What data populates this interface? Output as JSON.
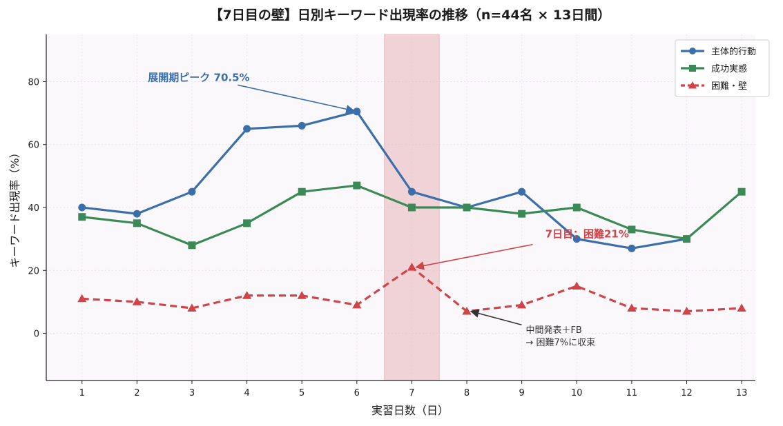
{
  "chart_data": {
    "type": "line",
    "title": "【7日目の壁】日別キーワード出現率の推移（n=44名 × 13日間）",
    "xlabel": "実習日数（日）",
    "ylabel": "キーワード出現率（%）",
    "x": [
      1,
      2,
      3,
      4,
      5,
      6,
      7,
      8,
      9,
      10,
      11,
      12,
      13
    ],
    "xlim": [
      0.35,
      13.25
    ],
    "ylim": [
      -15,
      95
    ],
    "yticks": [
      0,
      20,
      40,
      60,
      80
    ],
    "grid": true,
    "legend_position": "top-right",
    "highlight_band": {
      "x_from": 6.5,
      "x_to": 7.5,
      "color": "#e8b4b8"
    },
    "series": [
      {
        "name": "主体的行動",
        "marker": "circle",
        "color": "#3a6faa",
        "dash": false,
        "values": [
          40,
          38,
          45,
          65,
          66,
          70.5,
          45,
          40,
          45,
          30,
          27,
          30,
          null
        ]
      },
      {
        "name": "成功実感",
        "marker": "square",
        "color": "#3a8a55",
        "dash": false,
        "values": [
          37,
          35,
          28,
          35,
          45,
          47,
          40,
          40,
          38,
          40,
          33,
          30,
          45
        ]
      },
      {
        "name": "困難・壁",
        "marker": "triangle",
        "color": "#d04448",
        "dash": true,
        "values": [
          11,
          10,
          8,
          12,
          12,
          9,
          21,
          7,
          9,
          15,
          8,
          7,
          8
        ]
      }
    ],
    "annotations": [
      {
        "id": "peak",
        "text": "展開期ピーク 70.5%",
        "target": {
          "x": 6,
          "y": 70.5
        },
        "text_at": {
          "x": 2.2,
          "y": 82
        },
        "color": "#3a6faa",
        "bold": true
      },
      {
        "id": "wall",
        "text": "7日目：困難21%",
        "target": {
          "x": 7,
          "y": 21
        },
        "text_at": {
          "x": 9.2,
          "y": 30
        },
        "color": "#d04448",
        "bold": true
      },
      {
        "id": "note",
        "lines": [
          "中間発表＋FB",
          "→ 困難7%に収束"
        ],
        "target": {
          "x": 8,
          "y": 7
        },
        "text_at": {
          "x": 9.5,
          "y": -3
        },
        "color": "#333333",
        "bold": false
      }
    ]
  }
}
